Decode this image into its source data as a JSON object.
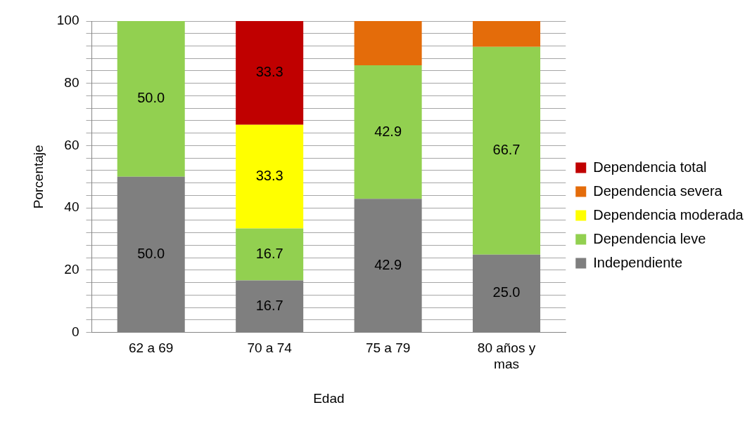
{
  "chart_data": {
    "type": "bar",
    "stacked": true,
    "xlabel": "Edad",
    "ylabel": "Porcentaje",
    "categories": [
      "62 a 69",
      "70 a 74",
      "75 a 79",
      "80 años y mas"
    ],
    "series": [
      {
        "name": "Independiente",
        "color": "#7f7f7f",
        "values": [
          50.0,
          16.7,
          42.9,
          25.0
        ],
        "value_labels": [
          "50.0",
          "16.7",
          "42.9",
          "25.0"
        ]
      },
      {
        "name": "Dependencia leve",
        "color": "#92d050",
        "values": [
          50.0,
          16.7,
          42.9,
          66.7
        ],
        "value_labels": [
          "50.0",
          "16.7",
          "42.9",
          "66.7"
        ]
      },
      {
        "name": "Dependencia moderada",
        "color": "#ffff00",
        "values": [
          null,
          33.3,
          null,
          null
        ],
        "value_labels": [
          null,
          "33.3",
          null,
          null
        ]
      },
      {
        "name": "Dependencia severa",
        "color": "#e46c0a",
        "values": [
          null,
          null,
          14.3,
          8.3
        ]
      },
      {
        "name": "Dependencia total",
        "color": "#c00000",
        "values": [
          null,
          33.3,
          null,
          null
        ],
        "value_labels": [
          null,
          "33.3",
          null,
          null
        ]
      }
    ],
    "ylim": [
      0,
      100
    ],
    "yticks": [
      0,
      {
        "value": 4,
        "label": null
      },
      {
        "value": 8,
        "label": null
      },
      {
        "value": 12,
        "label": null
      },
      {
        "value": 16,
        "label": null
      },
      20,
      {
        "value": 24,
        "label": null
      },
      {
        "value": 28,
        "label": null
      },
      {
        "value": 32,
        "label": null
      },
      {
        "value": 36,
        "label": null
      },
      40,
      {
        "value": 44,
        "label": null
      },
      {
        "value": 48,
        "label": null
      },
      {
        "value": 52,
        "label": null
      },
      {
        "value": 56,
        "label": null
      },
      60,
      {
        "value": 64,
        "label": null
      },
      {
        "value": 68,
        "label": null
      },
      {
        "value": 72,
        "label": null
      },
      {
        "value": 76,
        "label": null
      },
      80,
      {
        "value": 84,
        "label": null
      },
      {
        "value": 88,
        "label": null
      },
      {
        "value": 92,
        "label": null
      },
      {
        "value": 96,
        "label": null
      },
      100
    ],
    "grid": "y",
    "legend": "right"
  }
}
